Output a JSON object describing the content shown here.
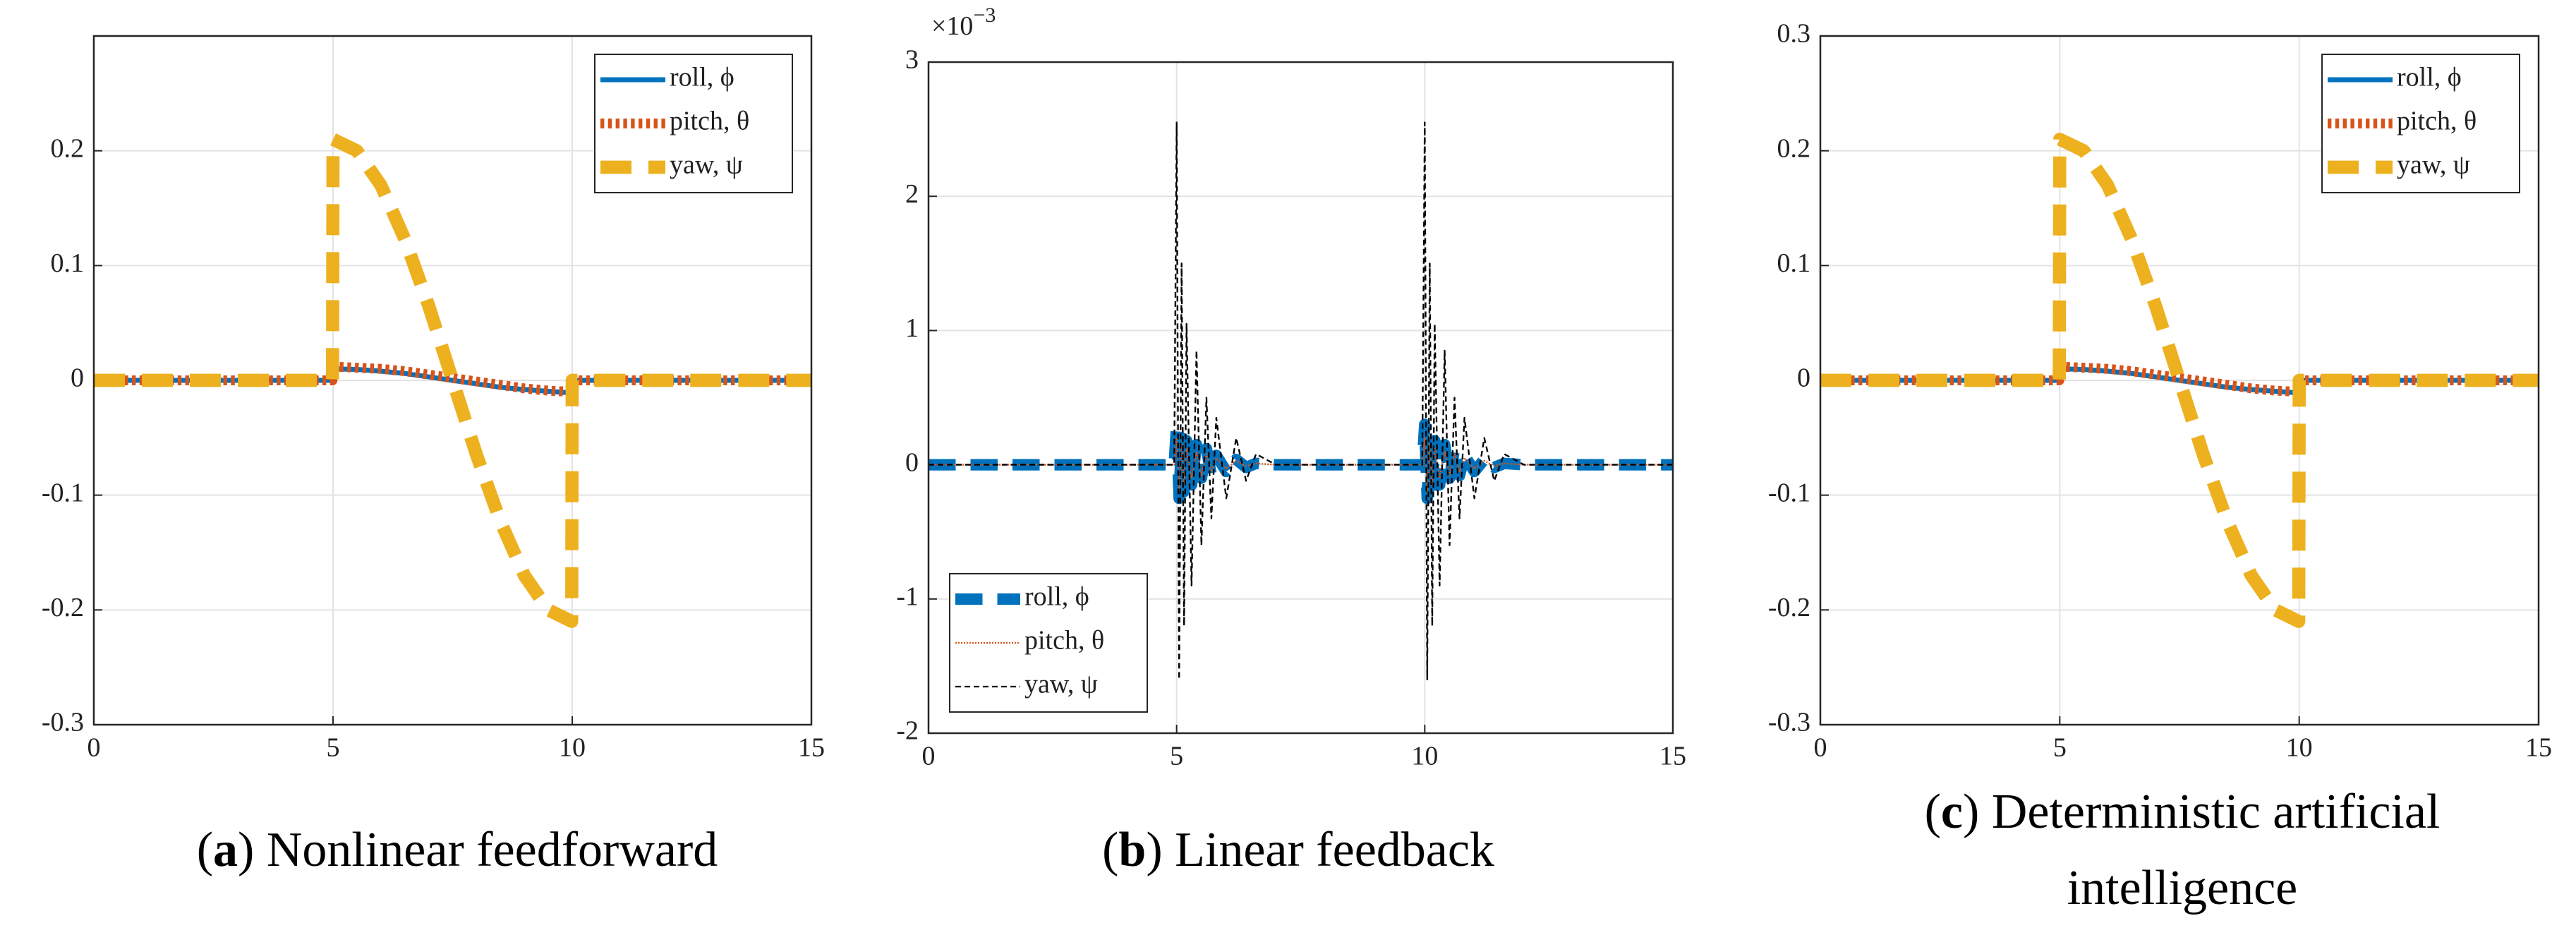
{
  "chart_data": [
    {
      "type": "line",
      "caption": [
        "(",
        "a",
        ") Nonlinear feedforward"
      ],
      "xlim": [
        0,
        15
      ],
      "xticks": [
        0,
        5,
        10,
        15
      ],
      "ylim": [
        -0.3,
        0.3
      ],
      "yticks": [
        -0.3,
        -0.2,
        -0.1,
        0,
        0.1,
        0.2
      ],
      "grid": true,
      "legend": "upper right",
      "x": [
        0,
        4.99,
        5,
        5.5,
        6,
        6.5,
        7,
        7.5,
        8,
        8.5,
        9,
        9.5,
        9.99,
        10,
        15
      ],
      "series": [
        {
          "name": "roll, ϕ",
          "color": "#0072bd",
          "style": "solid",
          "line_width": 3,
          "values": [
            0,
            0,
            0.01,
            0.0095,
            0.008,
            0.006,
            0.003,
            0,
            -0.003,
            -0.006,
            -0.008,
            -0.0095,
            -0.011,
            0,
            0
          ]
        },
        {
          "name": "pitch, θ",
          "color": "#d95319",
          "style": "dotted",
          "line_width": 6,
          "values": [
            0,
            0,
            0.012,
            0.011,
            0.01,
            0.008,
            0.005,
            0.002,
            -0.001,
            -0.004,
            -0.007,
            -0.009,
            -0.01,
            0,
            0
          ]
        },
        {
          "name": "yaw, ψ",
          "color": "#edb120",
          "style": "dashed",
          "line_width": 8,
          "values": [
            0,
            0,
            0.21,
            0.2,
            0.17,
            0.123,
            0.065,
            0,
            -0.065,
            -0.123,
            -0.17,
            -0.2,
            -0.21,
            0,
            0
          ]
        }
      ]
    },
    {
      "type": "line",
      "caption": [
        "(",
        "b",
        ") Linear feedback"
      ],
      "y_multiplier": {
        "base": "×10",
        "exponent": "−3"
      },
      "xlim": [
        0,
        15
      ],
      "xticks": [
        0,
        5,
        10,
        15
      ],
      "ylim": [
        -2,
        3
      ],
      "yticks": [
        -2,
        -1,
        0,
        1,
        2,
        3
      ],
      "grid": true,
      "legend": "lower left",
      "x": [
        0,
        4.95,
        5.0,
        5.05,
        5.1,
        5.15,
        5.2,
        5.3,
        5.4,
        5.5,
        5.6,
        5.7,
        5.8,
        6.0,
        6.2,
        6.4,
        6.6,
        7.0,
        9.95,
        10.0,
        10.05,
        10.1,
        10.15,
        10.2,
        10.3,
        10.4,
        10.5,
        10.6,
        10.7,
        10.8,
        11.0,
        11.2,
        11.4,
        11.6,
        12.0,
        15
      ],
      "series": [
        {
          "name": "roll, ϕ",
          "color": "#0072bd",
          "style": "dashed",
          "line_width": 7,
          "values": [
            0,
            0,
            0.3,
            -0.25,
            0.2,
            -0.2,
            0.18,
            -0.15,
            0.15,
            -0.1,
            0.12,
            -0.08,
            0.07,
            -0.05,
            0.04,
            -0.02,
            0.01,
            0,
            0,
            0.3,
            -0.25,
            0.2,
            -0.2,
            0.18,
            -0.15,
            0.15,
            -0.1,
            0.12,
            -0.08,
            0.07,
            -0.05,
            0.04,
            -0.02,
            0.01,
            0,
            0
          ]
        },
        {
          "name": "pitch, θ",
          "color": "#d95319",
          "style": "dotted",
          "line_width": 1,
          "values": [
            0,
            0,
            0.2,
            -0.2,
            0.15,
            -0.15,
            0.12,
            -0.1,
            0.1,
            -0.08,
            0.08,
            -0.05,
            0.05,
            -0.03,
            0.03,
            -0.01,
            0.01,
            0,
            0,
            0.2,
            -0.2,
            0.15,
            -0.15,
            0.12,
            -0.1,
            0.1,
            -0.08,
            0.08,
            -0.05,
            0.05,
            -0.03,
            0.03,
            -0.01,
            0.01,
            0,
            0
          ]
        },
        {
          "name": "yaw, ψ",
          "color": "#000000",
          "style": "dashed",
          "line_width": 1,
          "values": [
            0,
            0,
            2.55,
            -1.6,
            1.5,
            -1.2,
            1.05,
            -0.9,
            0.85,
            -0.6,
            0.5,
            -0.4,
            0.35,
            -0.25,
            0.2,
            -0.12,
            0.08,
            0,
            0,
            2.55,
            -1.6,
            1.5,
            -1.2,
            1.05,
            -0.9,
            0.85,
            -0.6,
            0.5,
            -0.4,
            0.35,
            -0.25,
            0.2,
            -0.12,
            0.08,
            0,
            0
          ]
        }
      ]
    },
    {
      "type": "line",
      "caption": [
        "(",
        "c",
        ") Deterministic artificial",
        "intelligence"
      ],
      "xlim": [
        0,
        15
      ],
      "xticks": [
        0,
        5,
        10,
        15
      ],
      "ylim": [
        -0.3,
        0.3
      ],
      "yticks": [
        -0.3,
        -0.2,
        -0.1,
        0,
        0.1,
        0.2,
        0.3
      ],
      "grid": true,
      "legend": "upper right",
      "x": [
        0,
        4.99,
        5,
        5.5,
        6,
        6.5,
        7,
        7.5,
        8,
        8.5,
        9,
        9.5,
        9.99,
        10,
        15
      ],
      "series": [
        {
          "name": "roll, ϕ",
          "color": "#0072bd",
          "style": "solid",
          "line_width": 3,
          "values": [
            0,
            0,
            0.01,
            0.0095,
            0.008,
            0.006,
            0.003,
            0,
            -0.003,
            -0.006,
            -0.008,
            -0.0095,
            -0.011,
            0,
            0
          ]
        },
        {
          "name": "pitch, θ",
          "color": "#d95319",
          "style": "dotted",
          "line_width": 6,
          "values": [
            0,
            0,
            0.012,
            0.011,
            0.01,
            0.008,
            0.005,
            0.002,
            -0.001,
            -0.004,
            -0.007,
            -0.009,
            -0.01,
            0,
            0
          ]
        },
        {
          "name": "yaw, ψ",
          "color": "#edb120",
          "style": "dashed",
          "line_width": 8,
          "values": [
            0,
            0,
            0.21,
            0.2,
            0.17,
            0.123,
            0.065,
            0,
            -0.065,
            -0.123,
            -0.17,
            -0.2,
            -0.21,
            0,
            0
          ]
        }
      ]
    }
  ]
}
